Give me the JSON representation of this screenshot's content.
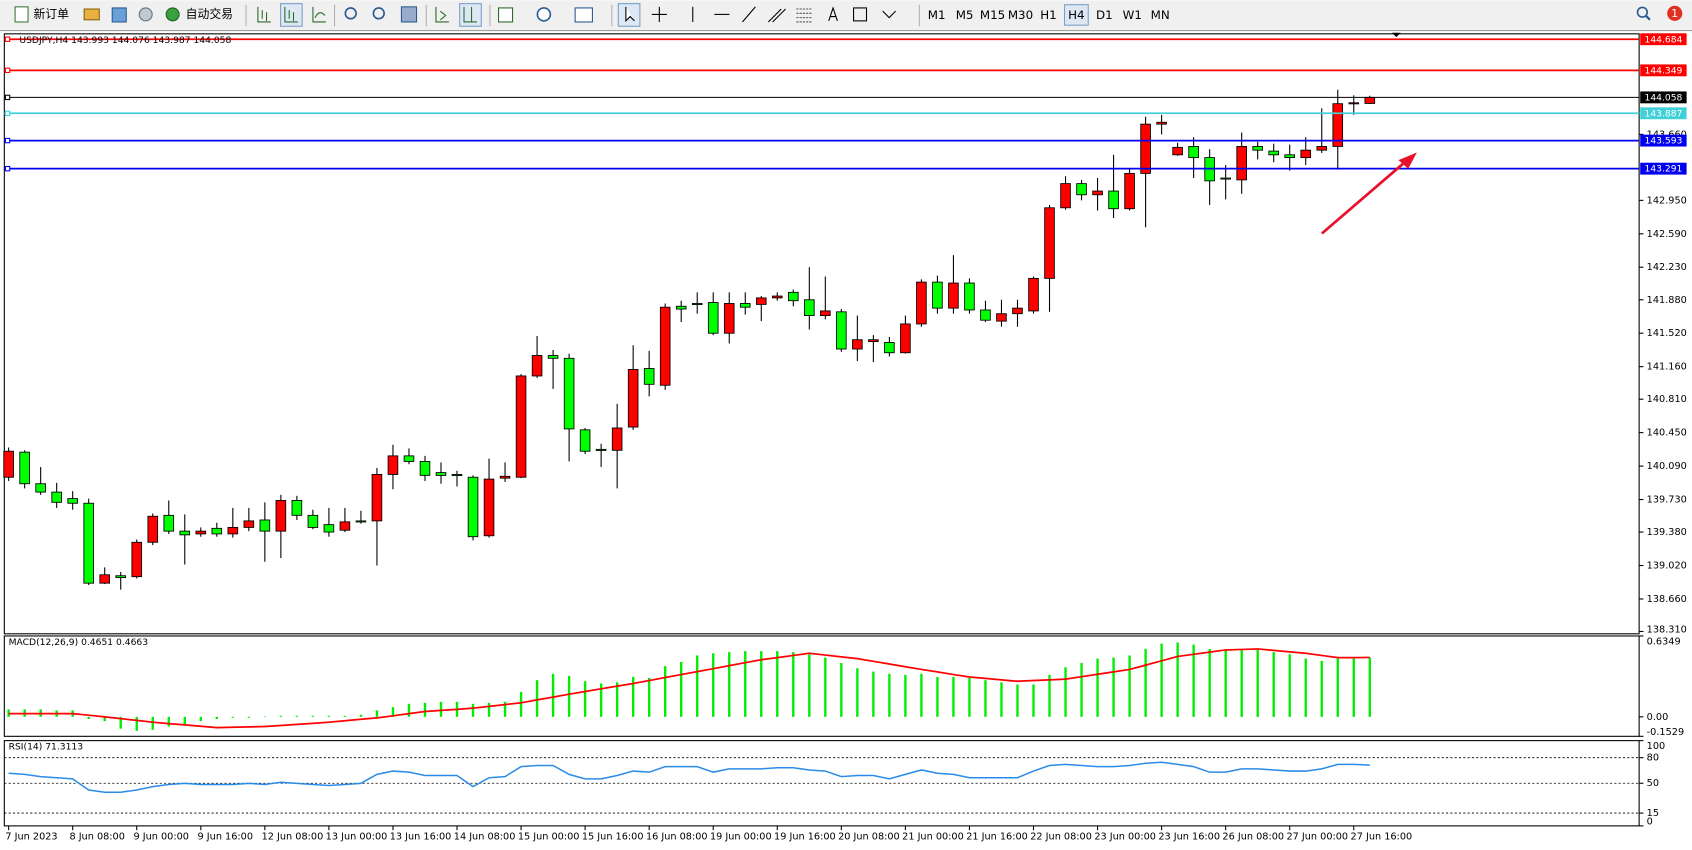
{
  "toolbar": {
    "new_order": "新订单",
    "auto_trading": "自动交易",
    "timeframes": [
      "M1",
      "M5",
      "M15",
      "M30",
      "H1",
      "H4",
      "D1",
      "W1",
      "MN"
    ],
    "notifications": "1"
  },
  "chart_data": [
    {
      "type": "candlestick",
      "title": "USDJPY,H4 143.993 144.076 143.987 144.058",
      "categories": [
        "7 Jun 2023",
        null,
        null,
        null,
        "8 Jun 08:00",
        null,
        null,
        null,
        "9 Jun 00:00",
        null,
        null,
        null,
        "9 Jun 16:00",
        null,
        null,
        null,
        "12 Jun 08:00",
        null,
        null,
        null,
        "13 Jun 00:00",
        null,
        null,
        null,
        "13 Jun 16:00",
        null,
        null,
        null,
        "14 Jun 08:00",
        null,
        null,
        null,
        "15 Jun 00:00",
        null,
        null,
        null,
        "15 Jun 16:00",
        null,
        null,
        null,
        "16 Jun 08:00",
        null,
        null,
        null,
        "19 Jun 00:00",
        null,
        null,
        null,
        "19 Jun 16:00",
        null,
        null,
        null,
        "20 Jun 08:00",
        null,
        null,
        null,
        "21 Jun 00:00",
        null,
        null,
        null,
        "21 Jun 16:00",
        null,
        null,
        null,
        "22 Jun 08:00",
        null,
        null,
        null,
        "23 Jun 00:00",
        null,
        null,
        null,
        "23 Jun 16:00",
        null,
        null,
        null,
        "26 Jun 08:00",
        null,
        null,
        null,
        "27 Jun 00:00",
        null,
        null,
        null,
        "27 Jun 16:00",
        null
      ],
      "open": [
        139.97,
        140.24,
        139.9,
        139.81,
        139.74,
        139.69,
        138.83,
        138.91,
        138.9,
        139.27,
        139.56,
        139.39,
        139.36,
        139.42,
        139.36,
        139.43,
        139.51,
        139.39,
        139.72,
        139.56,
        139.46,
        139.4,
        139.5,
        139.5,
        140.0,
        140.2,
        140.14,
        140.02,
        140.0,
        139.97,
        139.34,
        139.96,
        139.97,
        141.06,
        141.28,
        141.25,
        140.48,
        140.27,
        140.26,
        140.51,
        141.14,
        140.96,
        141.81,
        141.84,
        141.85,
        141.52,
        141.84,
        141.83,
        141.9,
        141.96,
        141.88,
        141.71,
        141.75,
        141.35,
        141.43,
        141.42,
        141.31,
        141.62,
        142.07,
        141.79,
        142.06,
        141.77,
        141.65,
        141.73,
        141.76,
        142.11,
        142.87,
        143.13,
        143.01,
        143.05,
        142.86,
        143.24,
        143.77,
        143.44,
        143.53,
        143.41,
        143.19,
        143.17,
        143.53,
        143.48,
        143.44,
        143.41,
        143.49,
        143.53,
        143.99,
        143.993
      ],
      "high": [
        140.29,
        140.26,
        140.08,
        139.91,
        139.82,
        139.74,
        139.0,
        138.95,
        139.3,
        139.58,
        139.72,
        139.57,
        139.43,
        139.48,
        139.64,
        139.64,
        139.7,
        139.78,
        139.77,
        139.62,
        139.64,
        139.64,
        139.61,
        140.07,
        140.32,
        140.28,
        140.2,
        140.13,
        140.04,
        139.99,
        140.17,
        140.13,
        141.08,
        141.49,
        141.34,
        141.3,
        140.5,
        140.33,
        140.76,
        141.39,
        141.33,
        141.84,
        141.87,
        141.96,
        141.96,
        141.96,
        141.96,
        141.92,
        141.96,
        141.99,
        142.23,
        142.13,
        141.78,
        141.71,
        141.5,
        141.48,
        141.71,
        142.1,
        142.14,
        142.36,
        142.11,
        141.87,
        141.88,
        141.88,
        142.13,
        142.9,
        143.21,
        143.17,
        143.19,
        143.44,
        143.3,
        143.85,
        143.87,
        143.57,
        143.63,
        143.5,
        143.33,
        143.68,
        143.58,
        143.56,
        143.55,
        143.63,
        143.94,
        144.14,
        144.08,
        144.076
      ],
      "low": [
        139.93,
        139.85,
        139.78,
        139.64,
        139.62,
        138.81,
        138.82,
        138.76,
        138.88,
        139.24,
        139.36,
        139.03,
        139.33,
        139.33,
        139.32,
        139.39,
        139.06,
        139.1,
        139.51,
        139.41,
        139.33,
        139.38,
        139.47,
        139.02,
        139.84,
        140.11,
        139.93,
        139.9,
        139.87,
        139.29,
        139.32,
        139.92,
        139.96,
        141.04,
        140.92,
        140.14,
        140.22,
        140.08,
        139.85,
        140.48,
        140.84,
        140.91,
        141.64,
        141.73,
        141.5,
        141.41,
        141.72,
        141.65,
        141.87,
        141.81,
        141.56,
        141.67,
        141.32,
        141.22,
        141.21,
        141.27,
        141.3,
        141.59,
        141.73,
        141.73,
        141.73,
        141.64,
        141.59,
        141.59,
        141.73,
        141.75,
        142.85,
        142.95,
        142.84,
        142.76,
        142.84,
        142.66,
        143.66,
        143.43,
        143.19,
        142.9,
        142.96,
        143.02,
        143.39,
        143.36,
        143.27,
        143.33,
        143.46,
        143.28,
        143.87,
        143.987
      ],
      "close": [
        140.25,
        139.9,
        139.81,
        139.7,
        139.69,
        138.83,
        138.92,
        138.89,
        139.27,
        139.55,
        139.39,
        139.35,
        139.39,
        139.36,
        139.43,
        139.5,
        139.39,
        139.72,
        139.56,
        139.43,
        139.38,
        139.49,
        139.49,
        140.0,
        140.2,
        140.14,
        139.99,
        139.99,
        139.99,
        139.33,
        139.95,
        139.98,
        141.06,
        141.28,
        141.25,
        140.49,
        140.25,
        140.26,
        140.5,
        141.13,
        140.97,
        141.8,
        141.78,
        141.83,
        141.52,
        141.84,
        141.8,
        141.9,
        141.92,
        141.87,
        141.71,
        141.76,
        141.35,
        141.45,
        141.45,
        141.31,
        141.62,
        142.07,
        141.79,
        142.06,
        141.77,
        141.66,
        141.73,
        141.79,
        142.11,
        142.87,
        143.13,
        143.01,
        143.05,
        142.86,
        143.24,
        143.77,
        143.79,
        143.52,
        143.41,
        143.16,
        143.18,
        143.53,
        143.49,
        143.44,
        143.41,
        143.49,
        143.53,
        143.99,
        144.0,
        144.058
      ],
      "up_color": "#ff0000",
      "down_color": "#00ff00",
      "lines": [
        {
          "value": 144.684,
          "color": "#ff0000"
        },
        {
          "value": 144.349,
          "color": "#ff0000"
        },
        {
          "value": 144.058,
          "color": "#000000"
        },
        {
          "value": 143.887,
          "color": "#40d0d8"
        },
        {
          "value": 143.593,
          "color": "#0000ee"
        },
        {
          "value": 143.291,
          "color": "#0000ee"
        }
      ],
      "ylim": [
        138.285,
        144.742
      ],
      "yticks": [
        {
          "value": 143.66,
          "label": "143.660"
        },
        {
          "value": 142.95,
          "label": "142.950"
        },
        {
          "value": 142.59,
          "label": "142.590"
        },
        {
          "value": 142.23,
          "label": "142.230"
        },
        {
          "value": 141.88,
          "label": "141.880"
        },
        {
          "value": 141.52,
          "label": "141.520"
        },
        {
          "value": 141.16,
          "label": "141.160"
        },
        {
          "value": 140.81,
          "label": "140.810"
        },
        {
          "value": 140.45,
          "label": "140.450"
        },
        {
          "value": 140.09,
          "label": "140.090"
        },
        {
          "value": 139.73,
          "label": "139.730"
        },
        {
          "value": 139.38,
          "label": "139.380"
        },
        {
          "value": 139.02,
          "label": "139.020"
        },
        {
          "value": 138.66,
          "label": "138.660"
        },
        {
          "value": 138.31,
          "label": "138.310"
        }
      ]
    },
    {
      "type": "macd",
      "title": "MACD(12,26,9) 0.4651 0.4663",
      "series": [
        {
          "style": "bar",
          "color": "#00ee00",
          "values": [
            0.059,
            0.059,
            0.059,
            0.051,
            0.051,
            -0.017,
            -0.034,
            -0.093,
            -0.11,
            -0.102,
            -0.076,
            -0.059,
            -0.034,
            -0.017,
            -0.008,
            -0.008,
            0.004,
            0.008,
            0.008,
            0.008,
            0.008,
            0.008,
            0.017,
            0.051,
            0.076,
            0.102,
            0.11,
            0.118,
            0.118,
            0.102,
            0.11,
            0.118,
            0.195,
            0.288,
            0.338,
            0.321,
            0.279,
            0.262,
            0.271,
            0.313,
            0.305,
            0.398,
            0.431,
            0.482,
            0.499,
            0.508,
            0.516,
            0.516,
            0.516,
            0.508,
            0.491,
            0.465,
            0.423,
            0.381,
            0.355,
            0.338,
            0.33,
            0.338,
            0.313,
            0.313,
            0.305,
            0.288,
            0.271,
            0.254,
            0.254,
            0.33,
            0.389,
            0.423,
            0.457,
            0.465,
            0.482,
            0.533,
            0.575,
            0.584,
            0.567,
            0.533,
            0.525,
            0.533,
            0.525,
            0.508,
            0.491,
            0.457,
            0.44,
            0.457,
            0.457,
            0.4651
          ]
        },
        {
          "style": "line",
          "color": "#ff0000",
          "values": [
            0.025,
            0.025,
            0.025,
            0.025,
            0.025,
            0.013,
            0.0,
            -0.014,
            -0.028,
            -0.042,
            -0.053,
            -0.063,
            -0.074,
            -0.085,
            -0.082,
            -0.079,
            -0.076,
            -0.068,
            -0.059,
            -0.051,
            -0.042,
            -0.031,
            -0.019,
            -0.008,
            0.008,
            0.025,
            0.042,
            0.051,
            0.059,
            0.068,
            0.082,
            0.096,
            0.11,
            0.133,
            0.155,
            0.178,
            0.199,
            0.22,
            0.241,
            0.262,
            0.285,
            0.309,
            0.332,
            0.355,
            0.378,
            0.402,
            0.425,
            0.448,
            0.465,
            0.482,
            0.499,
            0.485,
            0.471,
            0.457,
            0.436,
            0.415,
            0.393,
            0.372,
            0.353,
            0.332,
            0.313,
            0.302,
            0.29,
            0.279,
            0.285,
            0.29,
            0.296,
            0.315,
            0.334,
            0.353,
            0.372,
            0.406,
            0.44,
            0.474,
            0.491,
            0.508,
            0.525,
            0.529,
            0.533,
            0.522,
            0.51,
            0.499,
            0.482,
            0.465,
            0.465,
            0.4663
          ]
        }
      ],
      "ylim": [
        -0.1529,
        0.6349
      ],
      "yticks": [
        0.6349,
        {
          "value": 0,
          "label": "0.00"
        },
        -0.1529
      ]
    },
    {
      "type": "line",
      "title": "RSI(14) 71.3113",
      "series": [
        {
          "style": "line",
          "color": "#2a8ce8",
          "values": [
            61.7,
            60.4,
            57.8,
            56.5,
            55.1,
            42.1,
            39.5,
            39.5,
            42.1,
            46.0,
            48.6,
            49.9,
            48.6,
            48.6,
            48.6,
            49.9,
            48.6,
            51.2,
            49.9,
            48.6,
            47.3,
            48.6,
            49.9,
            60.4,
            64.3,
            63.0,
            59.1,
            59.1,
            59.1,
            46.0,
            56.5,
            57.8,
            69.5,
            70.8,
            70.8,
            60.4,
            55.1,
            55.1,
            59.1,
            64.3,
            63.0,
            69.5,
            69.5,
            69.5,
            63.0,
            66.9,
            66.9,
            66.9,
            68.2,
            68.2,
            65.6,
            64.3,
            57.8,
            59.1,
            59.1,
            55.1,
            60.4,
            65.6,
            61.7,
            60.4,
            56.5,
            56.5,
            56.5,
            56.5,
            64.3,
            70.8,
            72.1,
            70.8,
            69.5,
            69.5,
            70.8,
            73.4,
            74.7,
            72.1,
            69.5,
            63.0,
            63.0,
            66.9,
            66.9,
            65.6,
            64.3,
            64.3,
            66.9,
            72.1,
            72.1,
            71.3113
          ]
        }
      ],
      "ylim": [
        0,
        100
      ],
      "yticks": [
        100,
        80,
        50,
        15,
        0
      ],
      "grid": true
    }
  ]
}
